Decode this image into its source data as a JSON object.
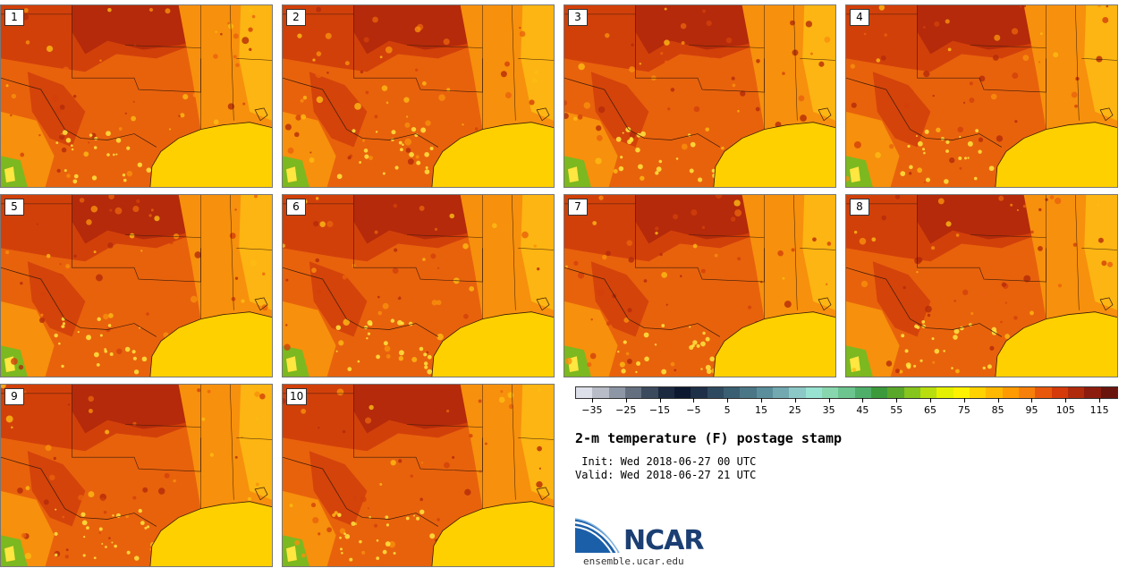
{
  "stamps": [
    {
      "label": "1"
    },
    {
      "label": "2"
    },
    {
      "label": "3"
    },
    {
      "label": "4"
    },
    {
      "label": "5"
    },
    {
      "label": "6"
    },
    {
      "label": "7"
    },
    {
      "label": "8"
    },
    {
      "label": "9"
    },
    {
      "label": "10"
    }
  ],
  "colorbar": {
    "colors": [
      "#dde0e8",
      "#b7bcc6",
      "#8d96a4",
      "#647080",
      "#3c4a5d",
      "#1c2a40",
      "#0b1830",
      "#1e2f48",
      "#2e4a60",
      "#3a5e72",
      "#4a7686",
      "#5a8e9a",
      "#72a8b0",
      "#8cc8c6",
      "#98e2d2",
      "#88d6ae",
      "#6cc48e",
      "#4eae6a",
      "#3c9a3a",
      "#5aa82a",
      "#86c41e",
      "#b8de10",
      "#e4f000",
      "#fff200",
      "#ffd200",
      "#ffb800",
      "#ff9a00",
      "#f7800a",
      "#e8580c",
      "#d43a0a",
      "#b02a0c",
      "#8c1c0e",
      "#6a140e"
    ],
    "ticks": [
      "-35",
      "-25",
      "-15",
      "-5",
      "5",
      "15",
      "25",
      "35",
      "45",
      "55",
      "65",
      "75",
      "85",
      "95",
      "105",
      "115"
    ],
    "min": -40,
    "max": 120
  },
  "info": {
    "title": "2-m temperature (F) postage stamp",
    "init": " Init: Wed 2018-06-27 00 UTC",
    "valid": "Valid: Wed 2018-06-27 21 UTC"
  },
  "logo": {
    "name": "NCAR",
    "site": "ensemble.ucar.edu"
  },
  "map_colors": {
    "very_hot": "#b42a0a",
    "hot": "#d2400a",
    "warm": "#e8620c",
    "mild": "#f7900c",
    "cool": "#fdbc14",
    "gulf": "#ffd000",
    "coastal": "#ffe640",
    "mountain": "#7cb820",
    "border": "#3a1a0a"
  }
}
